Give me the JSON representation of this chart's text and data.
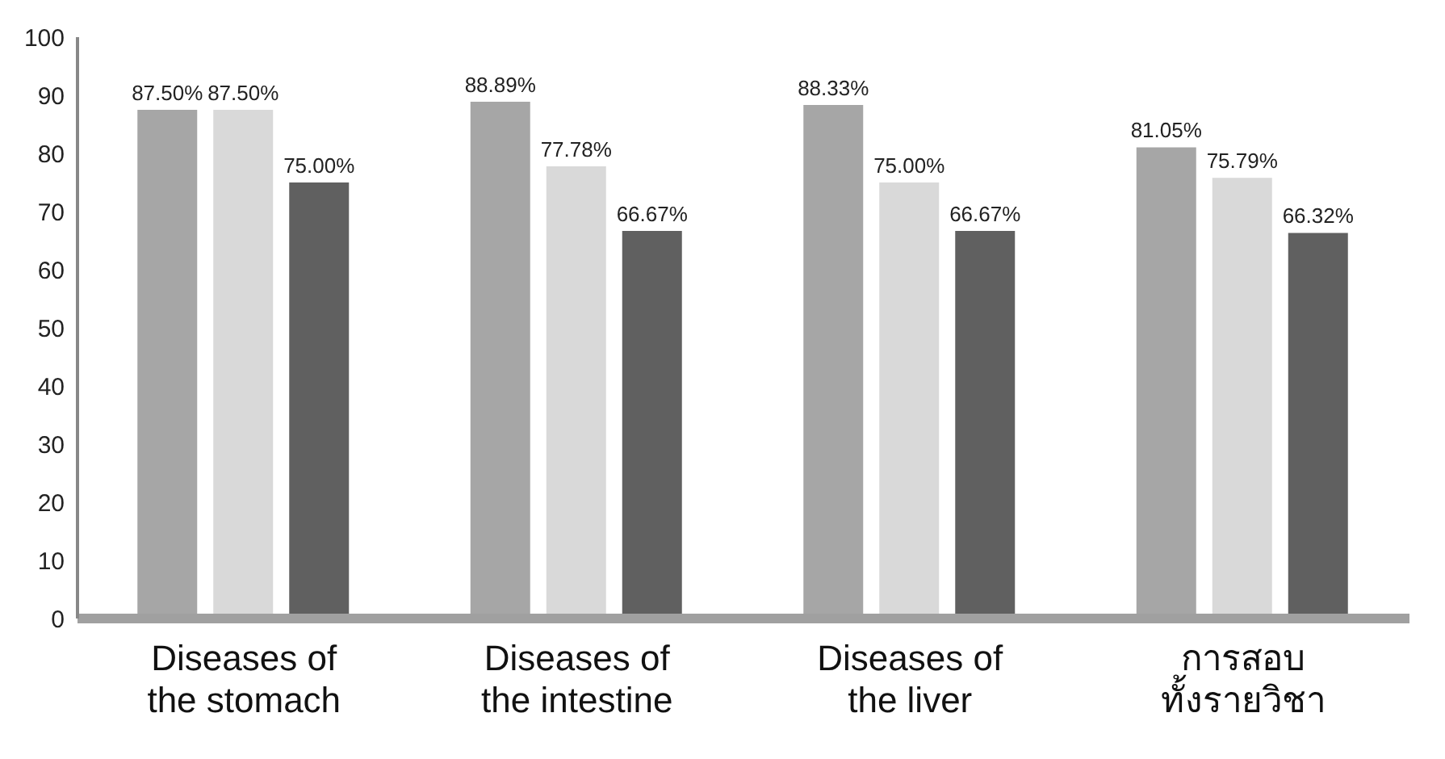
{
  "chart_data": {
    "type": "bar",
    "categories": [
      "Diseases of\nthe stomach",
      "Diseases of\nthe intestine",
      "Diseases of\nthe liver",
      "การสอบ\nทั้งรายวิชา"
    ],
    "series": [
      {
        "color": "#a6a6a6",
        "values": [
          87.5,
          88.89,
          88.33,
          81.05
        ],
        "value_labels": [
          "87.50%",
          "88.89%",
          "88.33%",
          "81.05%"
        ]
      },
      {
        "color": "#d9d9d9",
        "values": [
          87.5,
          77.78,
          75,
          75.79
        ],
        "value_labels": [
          "87.50%",
          "77.78%",
          "75.00%",
          "75.79%"
        ]
      },
      {
        "color": "#606060",
        "values": [
          75,
          66.67,
          66.67,
          66.32
        ],
        "value_labels": [
          "75.00%",
          "66.67%",
          "66.67%",
          "66.32%"
        ]
      }
    ],
    "ylim": [
      0,
      100
    ],
    "yticks": [
      0,
      10,
      20,
      30,
      40,
      50,
      60,
      70,
      80,
      90,
      100
    ],
    "grid": false,
    "legend": false
  }
}
